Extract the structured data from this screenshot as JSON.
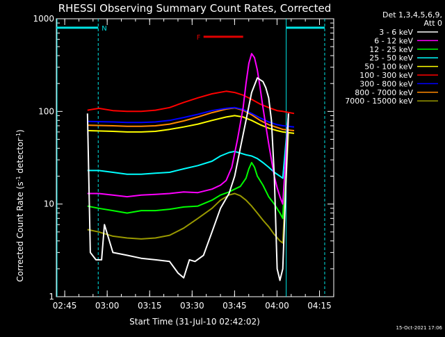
{
  "chart_data": {
    "type": "line",
    "title": "RHESSI Observing Summary Count Rates, Corrected",
    "xlabel": "Start Time (31-Jul-10 02:42:02)",
    "ylabel": "Corrected Count Rate (s^-1 detector^-1)",
    "ylabel_parts": {
      "base": "Corrected Count Rate (s",
      "sup1": "-1",
      "mid": " detector",
      "sup2": "-1",
      "end": ")"
    },
    "y_scale": "log",
    "ylim": [
      1,
      1000
    ],
    "y_tick_labels": [
      "1",
      "10",
      "100",
      "1000"
    ],
    "x_unit": "minutes after 02:42:02",
    "xlim": [
      0,
      98
    ],
    "x_ticks": [
      {
        "t": 2.97,
        "label": "02:45"
      },
      {
        "t": 17.97,
        "label": "03:00"
      },
      {
        "t": 32.97,
        "label": "03:15"
      },
      {
        "t": 47.97,
        "label": "03:30"
      },
      {
        "t": 62.97,
        "label": "03:45"
      },
      {
        "t": 77.97,
        "label": "04:00"
      },
      {
        "t": 92.97,
        "label": "04:15"
      }
    ],
    "legend_header": [
      "Det 1,3,4,5,6,9,",
      "Att 0"
    ],
    "legend_placement": "right",
    "timestamp": "15-Oct-2021 17:06",
    "flags": [
      {
        "label": "N",
        "color": "#00e5e5",
        "segments": [
          [
            0,
            14.8
          ],
          [
            81.2,
            94.8
          ]
        ],
        "y": 800,
        "dashed_edges": [
          14.8,
          94.8
        ]
      },
      {
        "label": "F",
        "color": "#e00000",
        "segments": [
          [
            52,
            66
          ]
        ],
        "y": 640
      }
    ],
    "series": [
      {
        "name": "3 - 6 keV",
        "color": "#ffffff",
        "x": [
          11,
          12,
          14,
          16,
          17,
          20,
          25,
          30,
          35,
          40,
          43,
          45,
          47,
          49,
          52,
          55,
          58,
          61,
          63,
          65,
          67,
          69,
          71,
          73,
          74,
          75,
          76,
          77,
          78,
          79,
          80,
          82
        ],
        "y": [
          95,
          3,
          2.5,
          2.5,
          6,
          3,
          2.8,
          2.6,
          2.5,
          2.4,
          1.8,
          1.6,
          2.5,
          2.4,
          2.8,
          5,
          9,
          13,
          20,
          40,
          80,
          160,
          230,
          210,
          180,
          140,
          80,
          20,
          2,
          1.5,
          2,
          95
        ]
      },
      {
        "name": "6 - 12 keV",
        "color": "#ff00ff",
        "x": [
          11,
          15,
          20,
          25,
          30,
          35,
          40,
          45,
          50,
          55,
          58,
          60,
          62,
          64,
          66,
          67,
          68,
          69,
          70,
          71,
          72,
          73,
          74,
          75,
          76,
          77,
          78,
          79,
          80,
          82
        ],
        "y": [
          13,
          13,
          12.5,
          12,
          12.5,
          12.7,
          13,
          13.5,
          13.3,
          14.5,
          16,
          18,
          25,
          50,
          110,
          200,
          330,
          420,
          380,
          280,
          180,
          110,
          70,
          45,
          30,
          20,
          15,
          12,
          10,
          95
        ]
      },
      {
        "name": "12 - 25 keV",
        "color": "#00ff00",
        "x": [
          11,
          15,
          20,
          25,
          30,
          35,
          40,
          45,
          50,
          55,
          58,
          61,
          63,
          65,
          67,
          68,
          69,
          70,
          71,
          73,
          75,
          77,
          79,
          80,
          82
        ],
        "y": [
          9.5,
          9,
          8.5,
          8,
          8.5,
          8.5,
          8.8,
          9.3,
          9.5,
          11,
          12.5,
          13.5,
          14.5,
          15.5,
          19,
          24,
          28,
          25,
          20,
          16,
          12,
          10,
          8,
          7,
          95
        ]
      },
      {
        "name": "25 - 50 keV",
        "color": "#00ffff",
        "x": [
          11,
          15,
          20,
          25,
          30,
          35,
          40,
          45,
          50,
          55,
          58,
          61,
          63,
          65,
          67,
          69,
          71,
          73,
          75,
          77,
          79,
          80,
          82
        ],
        "y": [
          23,
          23,
          22,
          21,
          21,
          21.5,
          22,
          24,
          26,
          29,
          33,
          36,
          37,
          35.5,
          34,
          33,
          31,
          28,
          25,
          22,
          20,
          19,
          95
        ]
      },
      {
        "name": "50 - 100 keV",
        "color": "#ffff00",
        "x": [
          11,
          20,
          25,
          30,
          35,
          40,
          45,
          50,
          55,
          60,
          63,
          66,
          69,
          72,
          75,
          78,
          80,
          84
        ],
        "y": [
          62,
          61,
          60,
          60,
          61,
          64,
          68,
          73,
          80,
          87,
          90,
          87,
          80,
          72,
          66,
          62,
          60,
          58
        ]
      },
      {
        "name": "100 - 300 keV",
        "color": "#ff0000",
        "x": [
          11,
          15,
          20,
          25,
          30,
          35,
          40,
          45,
          50,
          55,
          60,
          63,
          66,
          69,
          72,
          75,
          78,
          80,
          84
        ],
        "y": [
          103,
          108,
          102,
          100,
          100,
          103,
          110,
          125,
          140,
          155,
          165,
          160,
          150,
          135,
          120,
          110,
          102,
          100,
          95
        ]
      },
      {
        "name": "300 - 800 keV",
        "color": "#0000ff",
        "x": [
          11,
          20,
          25,
          30,
          35,
          40,
          45,
          50,
          55,
          60,
          63,
          66,
          69,
          72,
          75,
          78,
          80,
          84
        ],
        "y": [
          78,
          77,
          76,
          76,
          77,
          80,
          86,
          93,
          102,
          108,
          110,
          105,
          95,
          85,
          77,
          72,
          70,
          68
        ]
      },
      {
        "name": "800 - 7000 keV",
        "color": "#ff8800",
        "x": [
          11,
          20,
          25,
          30,
          35,
          40,
          45,
          50,
          55,
          60,
          63,
          66,
          69,
          72,
          75,
          78,
          80,
          84
        ],
        "y": [
          71,
          70,
          69,
          69,
          70,
          73,
          79,
          87,
          97,
          106,
          109,
          103,
          92,
          80,
          72,
          67,
          64,
          62
        ]
      },
      {
        "name": "7000 - 15000 keV",
        "color": "#999900",
        "x": [
          11,
          15,
          20,
          25,
          30,
          35,
          40,
          45,
          50,
          55,
          58,
          61,
          63,
          65,
          67,
          69,
          71,
          73,
          75,
          77,
          79,
          80,
          82
        ],
        "y": [
          5.3,
          5,
          4.5,
          4.3,
          4.2,
          4.3,
          4.6,
          5.5,
          7,
          9,
          11,
          12.5,
          13,
          12.3,
          11,
          9.5,
          8,
          6.7,
          5.7,
          4.7,
          4,
          3.8,
          58
        ]
      }
    ]
  }
}
